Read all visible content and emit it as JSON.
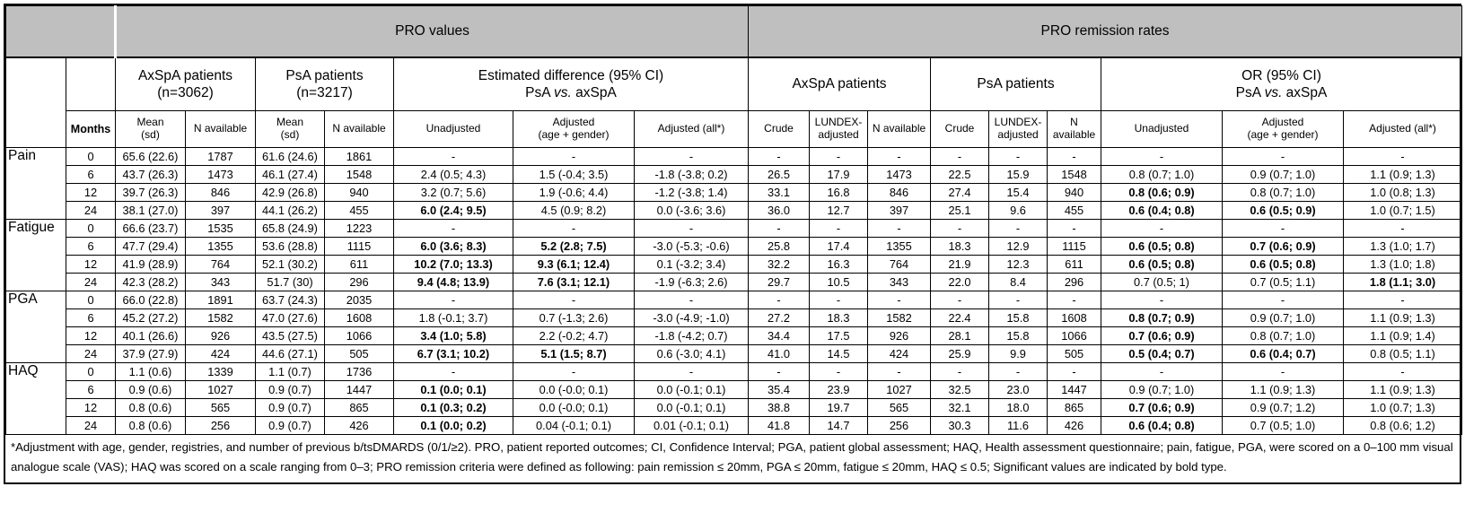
{
  "table": {
    "band": {
      "left": "",
      "pro_values": "PRO values",
      "pro_remission_rates": "PRO remission rates"
    },
    "section_headers": [
      {
        "lines": [
          "AxSpA patients",
          "(n=3062)"
        ],
        "colspan": 2
      },
      {
        "lines": [
          "PsA patients",
          "(n=3217)"
        ],
        "colspan": 2
      },
      {
        "lines": [
          "Estimated difference (95% CI)",
          "PsA vs. axSpA"
        ],
        "colspan": 3
      },
      {
        "lines": [
          "AxSpA patients"
        ],
        "colspan": 3
      },
      {
        "lines": [
          "PsA patients"
        ],
        "colspan": 3
      },
      {
        "lines": [
          "OR (95% CI)",
          "PsA vs. axSpA"
        ],
        "colspan": 3
      }
    ],
    "column_headers": [
      "Months",
      "Mean\n(sd)",
      "N available",
      "Mean\n(sd)",
      "N available",
      "Unadjusted",
      "Adjusted\n(age + gender)",
      "Adjusted (all*)",
      "Crude",
      "LUNDEX-\nadjusted",
      "N available",
      "Crude",
      "LUNDEX-\nadjusted",
      "N\navailable",
      "Unadjusted",
      "Adjusted\n(age + gender)",
      "Adjusted (all*)"
    ],
    "row_groups": [
      {
        "label": "Pain",
        "rows": [
          {
            "cells": [
              "0",
              "65.6 (22.6)",
              "1787",
              "61.6 (24.6)",
              "1861",
              "-",
              "-",
              "-",
              "-",
              "-",
              "-",
              "-",
              "-",
              "-",
              "-",
              "-",
              "-"
            ],
            "bold": []
          },
          {
            "cells": [
              "6",
              "43.7 (26.3)",
              "1473",
              "46.1 (27.4)",
              "1548",
              "2.4 (0.5; 4.3)",
              "1.5 (-0.4; 3.5)",
              "-1.8 (-3.8; 0.2)",
              "26.5",
              "17.9",
              "1473",
              "22.5",
              "15.9",
              "1548",
              "0.8 (0.7; 1.0)",
              "0.9 (0.7; 1.0)",
              "1.1 (0.9; 1.3)"
            ],
            "bold": []
          },
          {
            "cells": [
              "12",
              "39.7 (26.3)",
              "846",
              "42.9 (26.8)",
              "940",
              "3.2 (0.7; 5.6)",
              "1.9 (-0.6; 4.4)",
              "-1.2 (-3.8; 1.4)",
              "33.1",
              "16.8",
              "846",
              "27.4",
              "15.4",
              "940",
              "0.8 (0.6; 0.9)",
              "0.8 (0.7; 1.0)",
              "1.0 (0.8; 1.3)"
            ],
            "bold": [
              14
            ]
          },
          {
            "cells": [
              "24",
              "38.1 (27.0)",
              "397",
              "44.1 (26.2)",
              "455",
              "6.0 (2.4; 9.5)",
              "4.5 (0.9; 8.2)",
              "0.0 (-3.6; 3.6)",
              "36.0",
              "12.7",
              "397",
              "25.1",
              "9.6",
              "455",
              "0.6 (0.4; 0.8)",
              "0.6 (0.5; 0.9)",
              "1.0 (0.7; 1.5)"
            ],
            "bold": [
              5,
              14,
              15
            ]
          }
        ]
      },
      {
        "label": "Fatigue",
        "rows": [
          {
            "cells": [
              "0",
              "66.6 (23.7)",
              "1535",
              "65.8 (24.9)",
              "1223",
              "-",
              "-",
              "-",
              "-",
              "-",
              "-",
              "-",
              "-",
              "-",
              "-",
              "-",
              "-"
            ],
            "bold": []
          },
          {
            "cells": [
              "6",
              "47.7 (29.4)",
              "1355",
              "53.6 (28.8)",
              "1115",
              "6.0 (3.6; 8.3)",
              "5.2 (2.8; 7.5)",
              "-3.0 (-5.3; -0.6)",
              "25.8",
              "17.4",
              "1355",
              "18.3",
              "12.9",
              "1115",
              "0.6 (0.5; 0.8)",
              "0.7 (0.6; 0.9)",
              "1.3 (1.0; 1.7)"
            ],
            "bold": [
              5,
              6,
              14,
              15
            ]
          },
          {
            "cells": [
              "12",
              "41.9 (28.9)",
              "764",
              "52.1 (30.2)",
              "611",
              "10.2 (7.0; 13.3)",
              "9.3 (6.1; 12.4)",
              "0.1 (-3.2; 3.4)",
              "32.2",
              "16.3",
              "764",
              "21.9",
              "12.3",
              "611",
              "0.6 (0.5; 0.8)",
              "0.6 (0.5; 0.8)",
              "1.3 (1.0; 1.8)"
            ],
            "bold": [
              5,
              6,
              14,
              15
            ]
          },
          {
            "cells": [
              "24",
              "42.3 (28.2)",
              "343",
              "51.7 (30)",
              "296",
              "9.4 (4.8; 13.9)",
              "7.6 (3.1; 12.1)",
              "-1.9 (-6.3; 2.6)",
              "29.7",
              "10.5",
              "343",
              "22.0",
              "8.4",
              "296",
              "0.7 (0.5; 1)",
              "0.7 (0.5; 1.1)",
              "1.8 (1.1; 3.0)"
            ],
            "bold": [
              5,
              6,
              16
            ]
          }
        ]
      },
      {
        "label": "PGA",
        "rows": [
          {
            "cells": [
              "0",
              "66.0 (22.8)",
              "1891",
              "63.7 (24.3)",
              "2035",
              "-",
              "-",
              "-",
              "-",
              "-",
              "-",
              "-",
              "-",
              "-",
              "-",
              "-",
              "-"
            ],
            "bold": []
          },
          {
            "cells": [
              "6",
              "45.2 (27.2)",
              "1582",
              "47.0 (27.6)",
              "1608",
              "1.8 (-0.1; 3.7)",
              "0.7 (-1.3; 2.6)",
              "-3.0 (-4.9; -1.0)",
              "27.2",
              "18.3",
              "1582",
              "22.4",
              "15.8",
              "1608",
              "0.8 (0.7; 0.9)",
              "0.9 (0.7; 1.0)",
              "1.1 (0.9; 1.3)"
            ],
            "bold": [
              14
            ]
          },
          {
            "cells": [
              "12",
              "40.1 (26.6)",
              "926",
              "43.5 (27.5)",
              "1066",
              "3.4 (1.0; 5.8)",
              "2.2 (-0.2; 4.7)",
              "-1.8 (-4.2; 0.7)",
              "34.4",
              "17.5",
              "926",
              "28.1",
              "15.8",
              "1066",
              "0.7 (0.6; 0.9)",
              "0.8 (0.7; 1.0)",
              "1.1 (0.9; 1.4)"
            ],
            "bold": [
              5,
              14
            ]
          },
          {
            "cells": [
              "24",
              "37.9 (27.9)",
              "424",
              "44.6 (27.1)",
              "505",
              "6.7 (3.1; 10.2)",
              "5.1 (1.5; 8.7)",
              "0.6 (-3.0; 4.1)",
              "41.0",
              "14.5",
              "424",
              "25.9",
              "9.9",
              "505",
              "0.5 (0.4; 0.7)",
              "0.6 (0.4; 0.7)",
              "0.8 (0.5; 1.1)"
            ],
            "bold": [
              5,
              6,
              14,
              15
            ]
          }
        ]
      },
      {
        "label": "HAQ",
        "rows": [
          {
            "cells": [
              "0",
              "1.1 (0.6)",
              "1339",
              "1.1 (0.7)",
              "1736",
              "-",
              "-",
              "-",
              "-",
              "-",
              "-",
              "-",
              "-",
              "-",
              "-",
              "-",
              "-"
            ],
            "bold": []
          },
          {
            "cells": [
              "6",
              "0.9 (0.6)",
              "1027",
              "0.9 (0.7)",
              "1447",
              "0.1 (0.0; 0.1)",
              "0.0 (-0.0; 0.1)",
              "0.0 (-0.1; 0.1)",
              "35.4",
              "23.9",
              "1027",
              "32.5",
              "23.0",
              "1447",
              "0.9 (0.7; 1.0)",
              "1.1 (0.9; 1.3)",
              "1.1 (0.9; 1.3)"
            ],
            "bold": [
              5
            ]
          },
          {
            "cells": [
              "12",
              "0.8 (0.6)",
              "565",
              "0.9 (0.7)",
              "865",
              "0.1 (0.3; 0.2)",
              "0.0 (-0.0; 0.1)",
              "0.0 (-0.1; 0.1)",
              "38.8",
              "19.7",
              "565",
              "32.1",
              "18.0",
              "865",
              "0.7 (0.6; 0.9)",
              "0.9 (0.7; 1.2)",
              "1.0 (0.7; 1.3)"
            ],
            "bold": [
              5,
              14
            ]
          },
          {
            "cells": [
              "24",
              "0.8 (0.6)",
              "256",
              "0.9 (0.7)",
              "426",
              "0.1 (0.0; 0.2)",
              "0.04 (-0.1; 0.1)",
              "0.01 (-0.1; 0.1)",
              "41.8",
              "14.7",
              "256",
              "30.3",
              "11.6",
              "426",
              "0.6 (0.4; 0.8)",
              "0.7 (0.5; 1.0)",
              "0.8 (0.6; 1.2)"
            ],
            "bold": [
              5,
              14
            ]
          }
        ]
      }
    ],
    "footnote": "*Adjustment with age, gender, registries, and number of previous b/tsDMARDS (0/1/≥2). PRO, patient reported outcomes; CI, Confidence Interval; PGA, patient global assessment; HAQ, Health assessment questionnaire; pain, fatigue, PGA, were scored on a 0–100 mm visual analogue scale (VAS); HAQ was scored on a scale ranging from 0–3; PRO remission criteria were defined as following: pain remission ≤ 20mm, PGA ≤ 20mm, fatigue ≤ 20mm, HAQ ≤ 0.5; Significant values are indicated by bold type."
  }
}
